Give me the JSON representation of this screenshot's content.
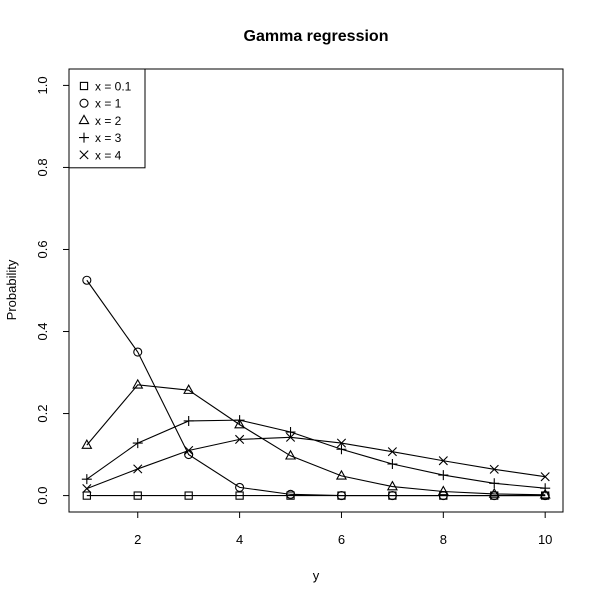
{
  "chart_data": {
    "type": "line",
    "title": "Gamma regression",
    "xlabel": "y",
    "ylabel": "Probability",
    "xlim": [
      0.65,
      10.35
    ],
    "ylim": [
      -0.04,
      1.04
    ],
    "x": [
      1,
      2,
      3,
      4,
      5,
      6,
      7,
      8,
      9,
      10
    ],
    "x_ticks": [
      2,
      4,
      6,
      8,
      10
    ],
    "x_tick_labels": [
      "2",
      "4",
      "6",
      "8",
      "10"
    ],
    "y_ticks": [
      0,
      0.2,
      0.4,
      0.6,
      0.8,
      1
    ],
    "y_tick_labels": [
      "0.0",
      "0.2",
      "0.4",
      "0.6",
      "0.8",
      "1.0"
    ],
    "grid": false,
    "legend_position": "top-left",
    "series": [
      {
        "name": "x = 0.1",
        "marker": "square",
        "values": [
          0.0,
          0.0,
          0.0,
          0.0,
          0.0,
          0.0,
          0.0,
          0.0,
          0.0,
          0.0
        ]
      },
      {
        "name": "x = 1",
        "marker": "circle",
        "values": [
          0.525,
          0.35,
          0.1,
          0.02,
          0.003,
          0.0,
          0.0,
          0.0,
          0.0,
          0.0
        ]
      },
      {
        "name": "x = 2",
        "marker": "triangle",
        "values": [
          0.123,
          0.27,
          0.257,
          0.173,
          0.097,
          0.048,
          0.022,
          0.01,
          0.004,
          0.002
        ]
      },
      {
        "name": "x = 3",
        "marker": "plus",
        "values": [
          0.04,
          0.128,
          0.182,
          0.184,
          0.155,
          0.113,
          0.077,
          0.05,
          0.03,
          0.018
        ]
      },
      {
        "name": "x = 4",
        "marker": "cross",
        "values": [
          0.017,
          0.065,
          0.11,
          0.137,
          0.142,
          0.128,
          0.107,
          0.085,
          0.064,
          0.046
        ]
      }
    ]
  }
}
